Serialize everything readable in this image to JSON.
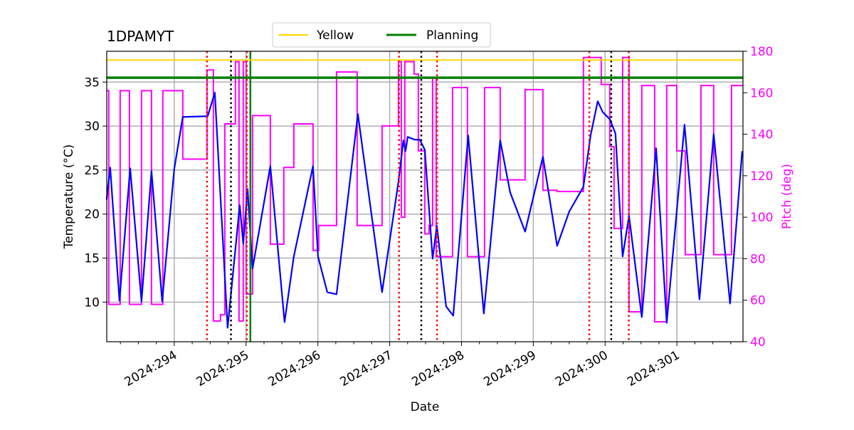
{
  "chart_data": {
    "type": "line",
    "title": "1DPAMYT",
    "xlabel": "Date",
    "ylabel": "Temperature ($^\\circ$C)",
    "ylabel_display": "Temperature (°C)",
    "y2label": "Pitch (deg)",
    "xlim": [
      293.06,
      301.92
    ],
    "ylim": [
      5.5,
      38.5
    ],
    "y2lim": [
      40,
      180
    ],
    "grid": true,
    "legend_placement": "top-center",
    "x_ticks": [
      294,
      295,
      296,
      297,
      298,
      299,
      300,
      301
    ],
    "x_tick_labels": [
      "2024:294",
      "2024:295",
      "2024:296",
      "2024:297",
      "2024:298",
      "2024:299",
      "2024:300",
      "2024:301"
    ],
    "y_ticks": [
      10,
      15,
      20,
      25,
      30,
      35
    ],
    "y2_ticks": [
      40,
      60,
      80,
      100,
      120,
      140,
      160,
      180
    ],
    "colors": {
      "temperature": "#0000ff",
      "pitch": "#ff00ff",
      "yellow": "#ffd700",
      "planning": "#008000",
      "red_lines": "#ff0000",
      "black_lines": "#000000",
      "grid": "#b0b0b0"
    },
    "legend": [
      {
        "name": "Yellow",
        "color": "#ffd700"
      },
      {
        "name": "Planning",
        "color": "#008000"
      }
    ],
    "limits": {
      "yellow": 37.5,
      "planning": 35.5
    },
    "temperature": [
      [
        293.058,
        21.65
      ],
      [
        293.108,
        25.29
      ],
      [
        293.237,
        10.16
      ],
      [
        293.386,
        25.21
      ],
      [
        293.544,
        10.08
      ],
      [
        293.683,
        24.89
      ],
      [
        293.832,
        10.08
      ],
      [
        294.0,
        25.13
      ],
      [
        294.119,
        31.04
      ],
      [
        294.466,
        31.12
      ],
      [
        294.565,
        33.79
      ],
      [
        294.743,
        7.09
      ],
      [
        294.912,
        21.0
      ],
      [
        294.961,
        16.63
      ],
      [
        295.021,
        22.86
      ],
      [
        295.09,
        13.8
      ],
      [
        295.338,
        25.45
      ],
      [
        295.536,
        7.73
      ],
      [
        295.665,
        15.18
      ],
      [
        295.932,
        25.45
      ],
      [
        296.002,
        15.18
      ],
      [
        296.131,
        11.13
      ],
      [
        296.26,
        10.89
      ],
      [
        296.557,
        31.36
      ],
      [
        296.894,
        11.13
      ],
      [
        297.122,
        23.67
      ],
      [
        297.191,
        28.37
      ],
      [
        297.221,
        27.15
      ],
      [
        297.251,
        28.77
      ],
      [
        297.35,
        28.45
      ],
      [
        297.419,
        28.45
      ],
      [
        297.489,
        27.31
      ],
      [
        297.598,
        14.94
      ],
      [
        297.657,
        18.66
      ],
      [
        297.786,
        9.51
      ],
      [
        297.885,
        8.46
      ],
      [
        298.093,
        28.93
      ],
      [
        298.311,
        8.71
      ],
      [
        298.539,
        28.37
      ],
      [
        298.678,
        22.46
      ],
      [
        298.886,
        18.01
      ],
      [
        299.134,
        26.5
      ],
      [
        299.332,
        16.39
      ],
      [
        299.5,
        20.28
      ],
      [
        299.698,
        23.11
      ],
      [
        299.798,
        28.93
      ],
      [
        299.897,
        32.82
      ],
      [
        299.966,
        31.6
      ],
      [
        300.065,
        30.79
      ],
      [
        300.144,
        29.17
      ],
      [
        300.244,
        15.18
      ],
      [
        300.333,
        19.79
      ],
      [
        300.511,
        8.3
      ],
      [
        300.71,
        27.48
      ],
      [
        300.858,
        7.65
      ],
      [
        301.106,
        30.15
      ],
      [
        301.314,
        10.32
      ],
      [
        301.512,
        29.09
      ],
      [
        301.74,
        9.84
      ],
      [
        301.909,
        27.15
      ]
    ],
    "pitch_steps": [
      [
        293.058,
        161
      ],
      [
        293.088,
        58
      ],
      [
        293.247,
        161
      ],
      [
        293.376,
        58
      ],
      [
        293.544,
        161
      ],
      [
        293.683,
        58
      ],
      [
        293.841,
        161
      ],
      [
        294.119,
        128
      ],
      [
        294.456,
        171
      ],
      [
        294.545,
        50
      ],
      [
        294.644,
        53
      ],
      [
        294.704,
        145
      ],
      [
        294.852,
        175
      ],
      [
        294.902,
        50
      ],
      [
        294.961,
        175
      ],
      [
        295.001,
        63
      ],
      [
        295.09,
        149
      ],
      [
        295.338,
        87
      ],
      [
        295.526,
        124
      ],
      [
        295.665,
        145
      ],
      [
        295.933,
        84
      ],
      [
        296.012,
        96
      ],
      [
        296.26,
        170
      ],
      [
        296.547,
        96
      ],
      [
        296.894,
        144
      ],
      [
        297.122,
        175
      ],
      [
        297.162,
        100
      ],
      [
        297.211,
        175
      ],
      [
        297.34,
        169
      ],
      [
        297.399,
        132
      ],
      [
        297.489,
        92
      ],
      [
        297.548,
        96
      ],
      [
        297.598,
        167
      ],
      [
        297.647,
        81
      ],
      [
        297.875,
        162.5
      ],
      [
        298.083,
        81
      ],
      [
        298.321,
        162.5
      ],
      [
        298.539,
        118
      ],
      [
        298.886,
        161.5
      ],
      [
        299.134,
        113
      ],
      [
        299.332,
        112.4
      ],
      [
        299.698,
        177
      ],
      [
        299.946,
        164
      ],
      [
        300.065,
        134
      ],
      [
        300.125,
        94.6
      ],
      [
        300.244,
        177
      ],
      [
        300.333,
        54.4
      ],
      [
        300.511,
        163.5
      ],
      [
        300.69,
        49.6
      ],
      [
        300.858,
        163.5
      ],
      [
        300.997,
        132
      ],
      [
        301.116,
        82
      ],
      [
        301.334,
        163.5
      ],
      [
        301.512,
        82
      ],
      [
        301.76,
        163.5
      ],
      [
        301.92,
        163.5
      ]
    ],
    "red_dotted_lines": [
      294.456,
      295.011,
      297.13,
      297.66,
      299.78,
      300.33
    ],
    "black_dotted_lines": [
      294.79,
      297.44,
      300.085
    ],
    "green_solid_lines": [
      295.06
    ]
  }
}
